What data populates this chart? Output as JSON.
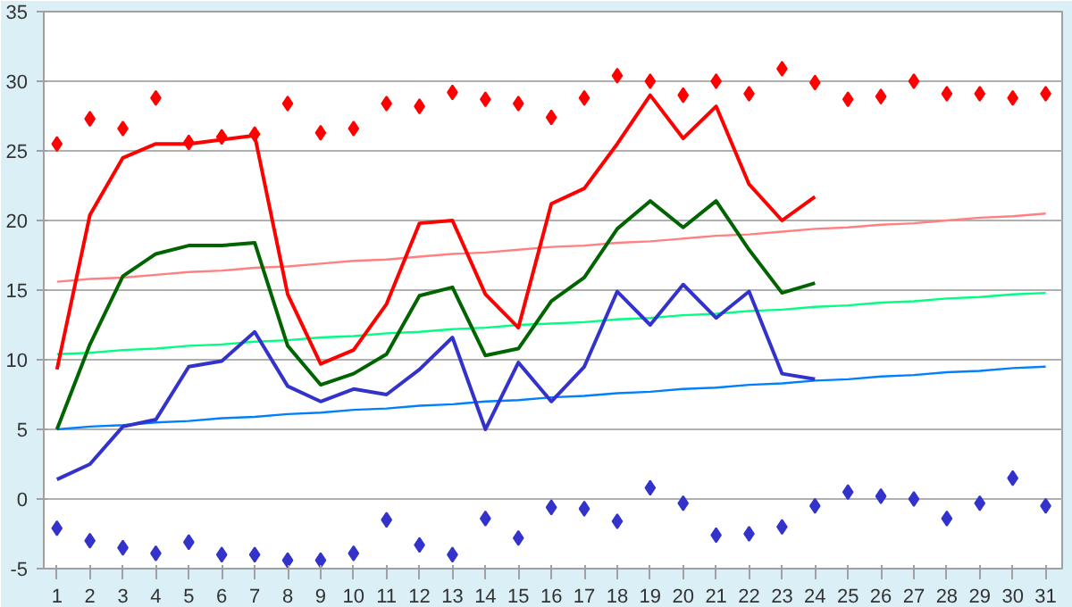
{
  "chart_data": {
    "type": "line",
    "x": [
      1,
      2,
      3,
      4,
      5,
      6,
      7,
      8,
      9,
      10,
      11,
      12,
      13,
      14,
      15,
      16,
      17,
      18,
      19,
      20,
      21,
      22,
      23,
      24,
      25,
      26,
      27,
      28,
      29,
      30,
      31
    ],
    "xlim": [
      0.6,
      31.5
    ],
    "xticks": [
      1,
      2,
      3,
      4,
      5,
      6,
      7,
      8,
      9,
      10,
      11,
      12,
      13,
      14,
      15,
      16,
      17,
      18,
      19,
      20,
      21,
      22,
      23,
      24,
      25,
      26,
      27,
      28,
      29,
      30,
      31
    ],
    "ylim": [
      -5,
      35
    ],
    "yticks": [
      -5,
      0,
      5,
      10,
      15,
      20,
      25,
      30,
      35
    ],
    "grid": "y",
    "series": [
      {
        "color": "#ff8080",
        "values": [
          15.6,
          15.8,
          15.9,
          16.1,
          16.3,
          16.4,
          16.6,
          16.7,
          16.9,
          17.1,
          17.2,
          17.4,
          17.6,
          17.7,
          17.9,
          18.1,
          18.2,
          18.4,
          18.5,
          18.7,
          18.9,
          19.0,
          19.2,
          19.4,
          19.5,
          19.7,
          19.8,
          20.0,
          20.2,
          20.3,
          20.5
        ]
      },
      {
        "color": "#00ff80",
        "values": [
          10.4,
          10.5,
          10.7,
          10.8,
          11.0,
          11.1,
          11.3,
          11.4,
          11.6,
          11.7,
          11.9,
          12.0,
          12.2,
          12.3,
          12.5,
          12.6,
          12.7,
          12.9,
          13.0,
          13.2,
          13.3,
          13.5,
          13.6,
          13.8,
          13.9,
          14.1,
          14.2,
          14.4,
          14.5,
          14.7,
          14.8
        ]
      },
      {
        "color": "#0080ff",
        "values": [
          5,
          5.2,
          5.3,
          5.5,
          5.6,
          5.8,
          5.9,
          6.1,
          6.2,
          6.4,
          6.5,
          6.7,
          6.8,
          7,
          7.1,
          7.3,
          7.4,
          7.6,
          7.7,
          7.9,
          8,
          8.2,
          8.3,
          8.5,
          8.6,
          8.8,
          8.9,
          9.1,
          9.2,
          9.4,
          9.5
        ]
      },
      {
        "color": "#ff0000",
        "values": [
          9.3,
          20.4,
          24.5,
          25.5,
          25.5,
          25.8,
          26.1,
          14.7,
          9.7,
          10.7,
          14,
          19.8,
          20,
          14.7,
          12.3,
          21.2,
          22.3,
          25.5,
          29,
          25.9,
          28.2,
          22.6,
          20,
          21.7,
          null,
          null,
          null,
          null,
          null,
          null,
          null
        ]
      },
      {
        "color": "#006400",
        "values": [
          5,
          11.1,
          16,
          17.6,
          18.2,
          18.2,
          18.4,
          11,
          8.2,
          9,
          10.4,
          14.6,
          15.2,
          10.3,
          10.8,
          14.2,
          15.9,
          19.4,
          21.4,
          19.5,
          21.4,
          17.9,
          14.8,
          15.5,
          null,
          null,
          null,
          null,
          null,
          null,
          null
        ]
      },
      {
        "color": "#3333cc",
        "values": [
          1.4,
          2.5,
          5.2,
          5.7,
          9.5,
          9.9,
          12,
          8.1,
          7,
          7.9,
          7.5,
          9.3,
          11.6,
          5,
          9.8,
          7,
          9.5,
          14.9,
          12.5,
          15.4,
          13,
          14.9,
          9,
          8.6,
          null,
          null,
          null,
          null,
          null,
          null,
          null
        ]
      },
      {
        "type": "scatter",
        "marker": "diamond",
        "color": "#ff0000",
        "values": [
          25.5,
          27.3,
          26.6,
          28.8,
          25.6,
          26,
          26.2,
          28.4,
          26.3,
          26.6,
          28.4,
          28.2,
          29.2,
          28.7,
          28.4,
          27.4,
          28.8,
          30.4,
          30,
          29,
          30,
          29.1,
          30.9,
          29.9,
          28.7,
          28.9,
          30,
          29.1,
          29.1,
          28.8,
          29.1
        ]
      },
      {
        "type": "scatter",
        "marker": "diamond",
        "color": "#3333cc",
        "values": [
          -2.1,
          -3,
          -3.5,
          -3.9,
          -3.1,
          -4,
          -4,
          -4.4,
          -4.4,
          -3.9,
          -1.5,
          -3.3,
          -4,
          -1.4,
          -2.8,
          -0.6,
          -0.7,
          -1.6,
          0.8,
          -0.3,
          -2.6,
          -2.5,
          -2,
          -0.5,
          0.5,
          0.2,
          0,
          -1.4,
          -0.3,
          1.5,
          -0.5
        ]
      }
    ]
  }
}
